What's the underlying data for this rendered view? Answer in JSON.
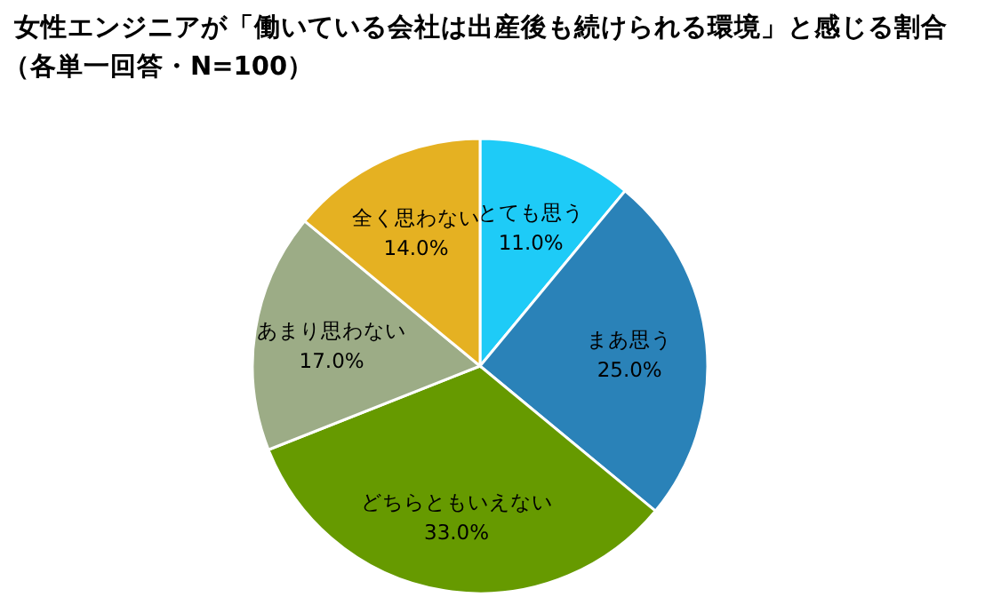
{
  "chart_data": {
    "type": "pie",
    "title": "女性エンジニアが「働いている会社は出産後も続けられる環境」と感じる割合",
    "subtitle": "（各単一回答・N=100）",
    "categories": [
      "とても思う",
      "まあ思う",
      "どちらともいえない",
      "あまり思わない",
      "全く思わない"
    ],
    "values": [
      11,
      25,
      33,
      17,
      14
    ],
    "value_labels": [
      "11.0%",
      "25.0%",
      "33.0%",
      "17.0%",
      "14.0%"
    ],
    "colors": [
      "#1ecbf7",
      "#2a82b8",
      "#669a00",
      "#9cac86",
      "#e5b122"
    ]
  }
}
